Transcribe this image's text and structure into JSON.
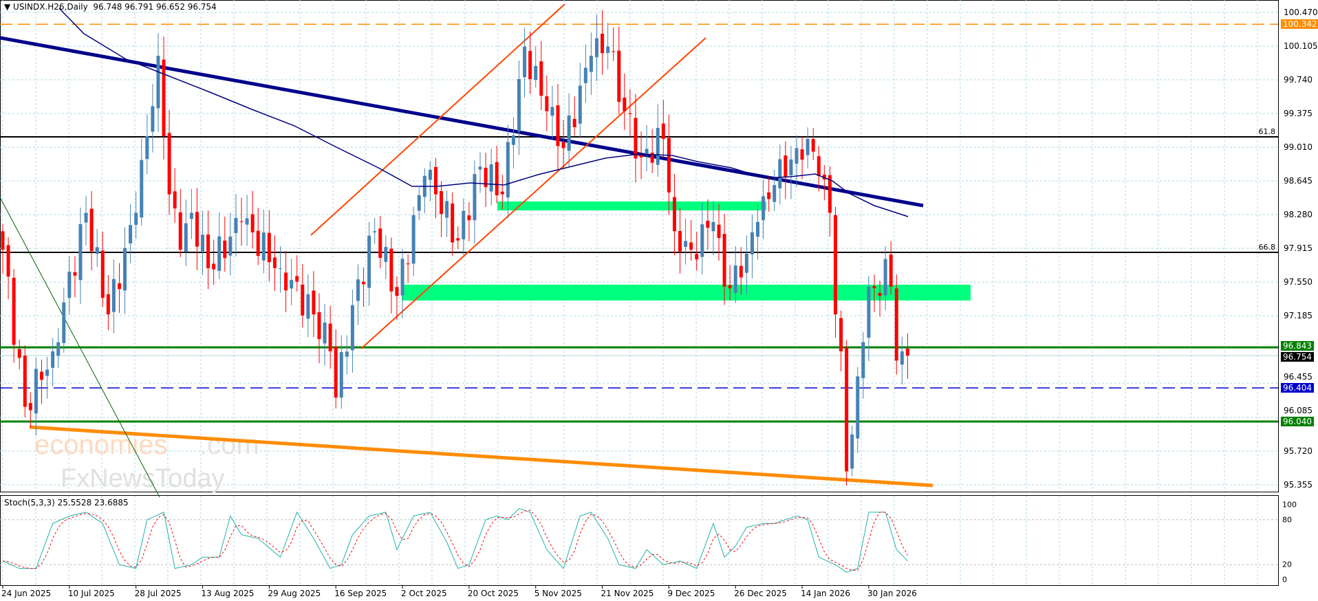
{
  "header": {
    "symbol": "USINDX.H26,Daily",
    "ohlc": "96.748 96.791 96.652 96.754"
  },
  "stoch_label": "Stoch(5,3,3) 25.5528 23.6885",
  "watermark": {
    "line1a": "economies",
    "line1b": ".com",
    "line2": "FxNewsToday"
  },
  "colors": {
    "up": "#4682b4",
    "down": "#ff0000",
    "ma": "#000080",
    "trend": "#00008b",
    "support": "#ff8c00",
    "channel": "#ff4500",
    "zone": "#00ff7f",
    "level_green": "#008000",
    "grid": "#add8e6"
  },
  "chart_data": {
    "type": "candlestick",
    "title": "USINDX.H26,Daily",
    "ylim": [
      95.355,
      100.47
    ],
    "yticks": [
      "100.470",
      "100.105",
      "99.740",
      "99.375",
      "99.010",
      "98.645",
      "98.280",
      "97.915",
      "97.550",
      "97.185",
      "96.455",
      "96.085",
      "95.720",
      "95.355"
    ],
    "xticks": [
      "24 Jun 2025",
      "10 Jul 2025",
      "28 Jul 2025",
      "13 Aug 2025",
      "29 Aug 2025",
      "16 Sep 2025",
      "2 Oct 2025",
      "20 Oct 2025",
      "5 Nov 2025",
      "21 Nov 2025",
      "9 Dec 2025",
      "26 Dec 2025",
      "14 Jan 2026",
      "30 Jan 2026"
    ],
    "bars": 164,
    "close_keypoints": [
      [
        0,
        97.9
      ],
      [
        4,
        96.2
      ],
      [
        9,
        96.8
      ],
      [
        15,
        98.3
      ],
      [
        19,
        97.2
      ],
      [
        24,
        98.3
      ],
      [
        28,
        100.0
      ],
      [
        30,
        98.5
      ],
      [
        32,
        97.9
      ],
      [
        34,
        98.3
      ],
      [
        37,
        97.7
      ],
      [
        43,
        98.2
      ],
      [
        50,
        97.7
      ],
      [
        56,
        97.2
      ],
      [
        59,
        96.8
      ],
      [
        60,
        96.3
      ],
      [
        63,
        97.3
      ],
      [
        67,
        98.1
      ],
      [
        71,
        97.4
      ],
      [
        76,
        98.7
      ],
      [
        78,
        98.5
      ],
      [
        82,
        98.0
      ],
      [
        86,
        98.8
      ],
      [
        90,
        98.5
      ],
      [
        94,
        100.1
      ],
      [
        98,
        99.4
      ],
      [
        101,
        99.0
      ],
      [
        106,
        100.0
      ],
      [
        109,
        100.1
      ],
      [
        112,
        99.4
      ],
      [
        115,
        98.9
      ],
      [
        119,
        99.1
      ],
      [
        121,
        98.1
      ],
      [
        124,
        97.9
      ],
      [
        128,
        98.2
      ],
      [
        130,
        97.5
      ],
      [
        133,
        97.6
      ],
      [
        136,
        98.2
      ],
      [
        139,
        98.6
      ],
      [
        143,
        99.0
      ],
      [
        145,
        99.1
      ],
      [
        147,
        98.7
      ],
      [
        149,
        98.3
      ],
      [
        150,
        97.2
      ],
      [
        151,
        96.8
      ],
      [
        152,
        95.5
      ],
      [
        153,
        95.9
      ],
      [
        155,
        96.9
      ],
      [
        156,
        97.5
      ],
      [
        158,
        97.4
      ],
      [
        159,
        97.8
      ],
      [
        160,
        97.5
      ],
      [
        161,
        96.7
      ],
      [
        162,
        96.8
      ],
      [
        163,
        96.754
      ]
    ],
    "levels": [
      {
        "price": 100.342,
        "label": "100.342",
        "style": "dashed",
        "color": "#ff8c00"
      },
      {
        "price": 96.843,
        "label": "96.843",
        "style": "solid",
        "color": "#008000"
      },
      {
        "price": 96.754,
        "label": "96.754",
        "style": "bid",
        "color": "#000000"
      },
      {
        "price": 96.404,
        "label": "96.404",
        "style": "dashed",
        "color": "#0000cd"
      },
      {
        "price": 96.04,
        "label": "96.040",
        "style": "solid",
        "color": "#008000"
      }
    ],
    "fib_levels": [
      {
        "label": "61.8",
        "price": 99.12
      },
      {
        "label": "66.8",
        "price": 97.87
      }
    ],
    "stochastic": {
      "params": "5,3,3",
      "main": 25.5528,
      "signal": 23.6885,
      "levels": [
        "100",
        "80",
        "20",
        "0"
      ],
      "keypoints": [
        [
          0,
          25
        ],
        [
          3,
          15
        ],
        [
          6,
          15
        ],
        [
          9,
          75
        ],
        [
          12,
          85
        ],
        [
          15,
          90
        ],
        [
          18,
          75
        ],
        [
          21,
          20
        ],
        [
          24,
          15
        ],
        [
          26,
          80
        ],
        [
          29,
          90
        ],
        [
          31,
          15
        ],
        [
          34,
          20
        ],
        [
          36,
          30
        ],
        [
          39,
          30
        ],
        [
          41,
          85
        ],
        [
          43,
          60
        ],
        [
          46,
          55
        ],
        [
          50,
          30
        ],
        [
          53,
          90
        ],
        [
          56,
          55
        ],
        [
          59,
          15
        ],
        [
          61,
          20
        ],
        [
          63,
          60
        ],
        [
          66,
          85
        ],
        [
          69,
          90
        ],
        [
          71,
          40
        ],
        [
          74,
          85
        ],
        [
          77,
          90
        ],
        [
          80,
          50
        ],
        [
          82,
          15
        ],
        [
          84,
          20
        ],
        [
          87,
          80
        ],
        [
          89,
          85
        ],
        [
          91,
          80
        ],
        [
          93,
          95
        ],
        [
          95,
          90
        ],
        [
          98,
          40
        ],
        [
          101,
          15
        ],
        [
          104,
          85
        ],
        [
          106,
          90
        ],
        [
          109,
          55
        ],
        [
          111,
          20
        ],
        [
          114,
          15
        ],
        [
          116,
          40
        ],
        [
          119,
          20
        ],
        [
          122,
          25
        ],
        [
          125,
          15
        ],
        [
          128,
          75
        ],
        [
          130,
          30
        ],
        [
          132,
          45
        ],
        [
          134,
          70
        ],
        [
          137,
          75
        ],
        [
          139,
          75
        ],
        [
          143,
          85
        ],
        [
          145,
          80
        ],
        [
          147,
          30
        ],
        [
          150,
          20
        ],
        [
          152,
          10
        ],
        [
          154,
          15
        ],
        [
          156,
          90
        ],
        [
          159,
          90
        ],
        [
          161,
          40
        ],
        [
          163,
          25
        ]
      ]
    }
  }
}
